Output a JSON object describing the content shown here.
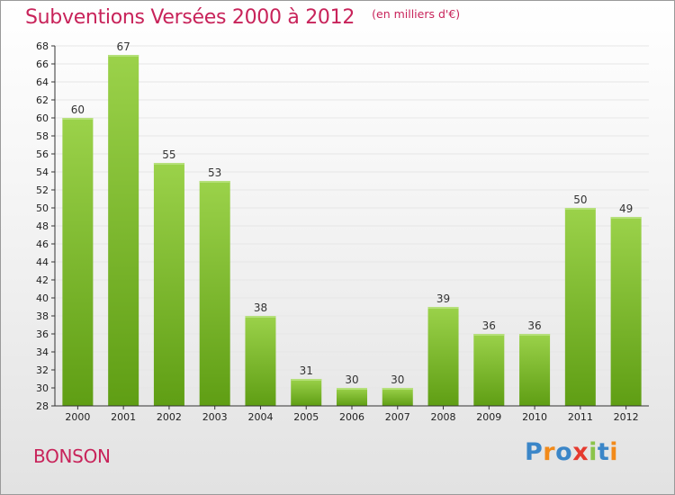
{
  "header": {
    "title": "Subventions Versées 2000 à 2012",
    "subtitle": "(en milliers d'€)"
  },
  "footer": {
    "commune": "BONSON",
    "logo": {
      "letters": [
        "P",
        "r",
        "o",
        "x",
        "i",
        "t",
        "i"
      ],
      "colors": [
        "#3b86c8",
        "#f28a1a",
        "#3b86c8",
        "#e53a2f",
        "#8bc34a",
        "#3b86c8",
        "#f28a1a"
      ]
    }
  },
  "colors": {
    "bar_light": "#9bd24a",
    "bar_dark": "#5f9e14",
    "axis": "#333333",
    "grid": "#e6e6e6"
  },
  "chart_data": {
    "type": "bar",
    "categories": [
      "2000",
      "2001",
      "2002",
      "2003",
      "2004",
      "2005",
      "2006",
      "2007",
      "2008",
      "2009",
      "2010",
      "2011",
      "2012"
    ],
    "values": [
      60,
      67,
      55,
      53,
      38,
      31,
      30,
      30,
      39,
      36,
      36,
      50,
      49
    ],
    "yticks": [
      "28",
      "30",
      "32",
      "34",
      "36",
      "38",
      "40",
      "42",
      "44",
      "46",
      "48",
      "50",
      "52",
      "54",
      "56",
      "58",
      "60",
      "62",
      "64",
      "66",
      "68"
    ],
    "ylim": [
      28,
      68
    ],
    "title": "Subventions Versées 2000 à 2012",
    "xlabel": "",
    "ylabel": "",
    "grid": true
  }
}
